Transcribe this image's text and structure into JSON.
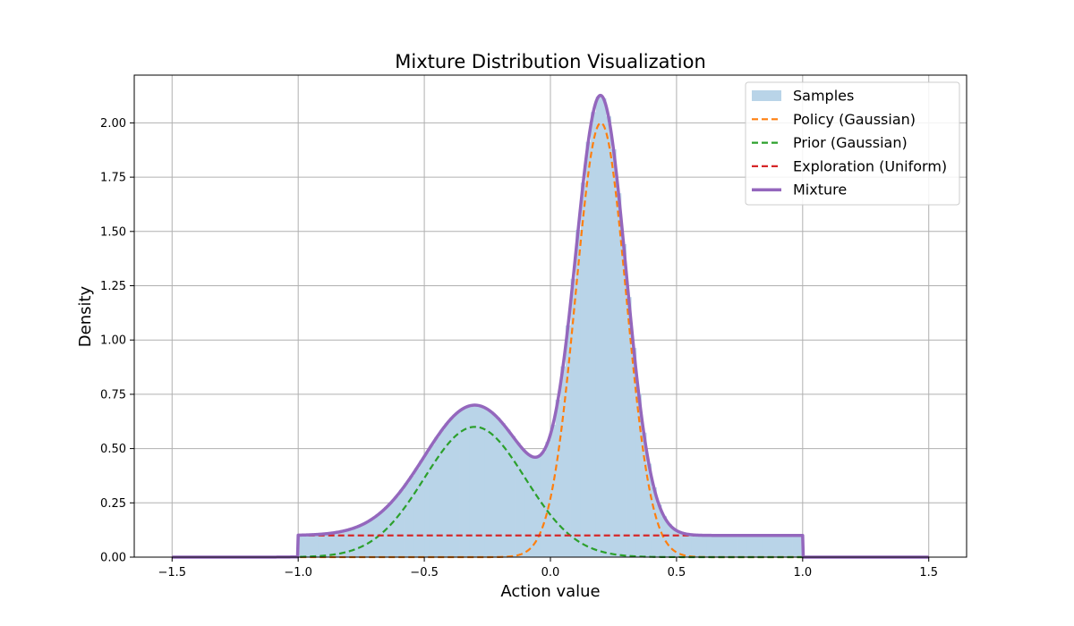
{
  "chart_data": {
    "type": "line",
    "title": "Mixture Distribution Visualization",
    "xlabel": "Action value",
    "ylabel": "Density",
    "xlim": [
      -1.65,
      1.65
    ],
    "ylim": [
      0,
      2.22
    ],
    "xticks": [
      -1.5,
      -1.0,
      -0.5,
      0.0,
      0.5,
      1.0,
      1.5
    ],
    "xtick_labels": [
      "−1.5",
      "−1.0",
      "−0.5",
      "0.0",
      "0.5",
      "1.0",
      "1.5"
    ],
    "yticks": [
      0.0,
      0.25,
      0.5,
      0.75,
      1.0,
      1.25,
      1.5,
      1.75,
      2.0
    ],
    "ytick_labels": [
      "0.00",
      "0.25",
      "0.50",
      "0.75",
      "1.00",
      "1.25",
      "1.50",
      "1.75",
      "2.00"
    ],
    "grid": true,
    "legend_position": "top-right",
    "components": {
      "policy": {
        "kind": "gaussian",
        "mean": 0.2,
        "peak": 2.0,
        "sd": 0.1
      },
      "prior": {
        "kind": "gaussian",
        "mean": -0.3,
        "peak": 0.6,
        "sd": 0.2
      },
      "exploration": {
        "kind": "uniform",
        "low": -1.0,
        "high": 1.0,
        "height": 0.1
      }
    },
    "x_range": [
      -1.5,
      1.5
    ],
    "series": [
      {
        "name": "Samples",
        "kind": "histogram",
        "color": "#b9d4e8"
      },
      {
        "name": "Policy (Gaussian)",
        "kind": "dashed",
        "color": "#ff7f0e"
      },
      {
        "name": "Prior (Gaussian)",
        "kind": "dashed",
        "color": "#2ca02c"
      },
      {
        "name": "Exploration (Uniform)",
        "kind": "dashed",
        "color": "#d62728"
      },
      {
        "name": "Mixture",
        "kind": "solid",
        "color": "#9467bd"
      }
    ]
  }
}
